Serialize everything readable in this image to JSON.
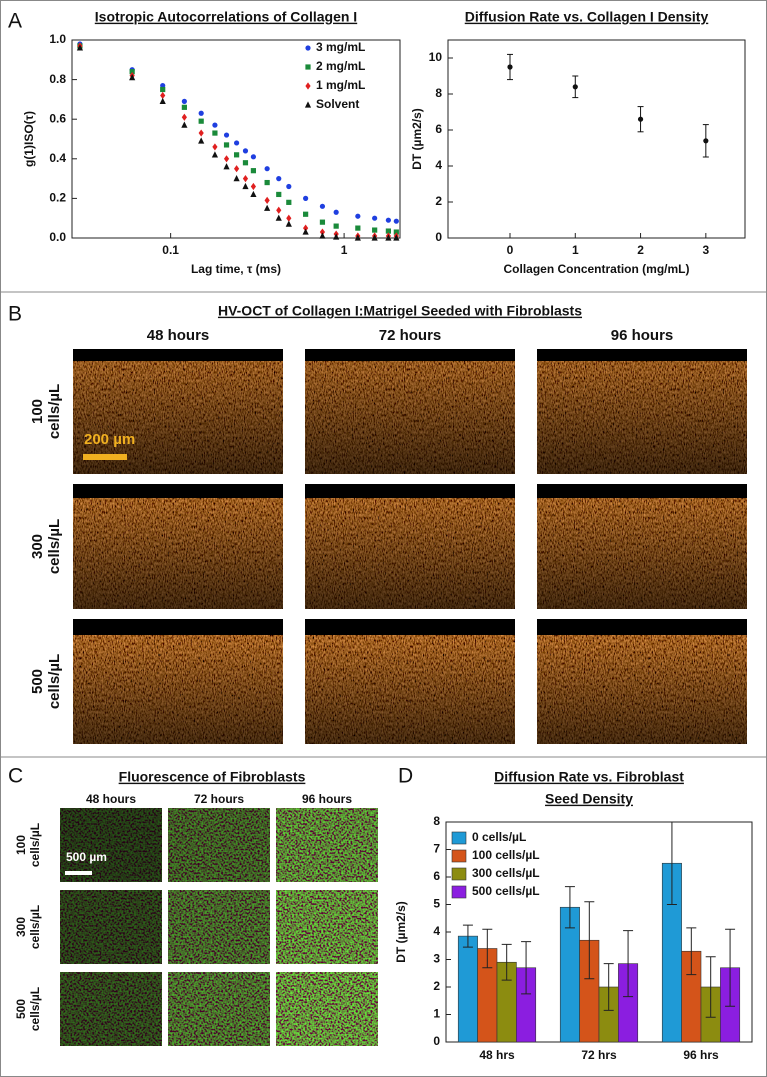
{
  "panels": [
    "A",
    "B",
    "C",
    "D"
  ],
  "chart_data": [
    {
      "type": "scatter",
      "title": "Isotropic Autocorrelations of Collagen I",
      "x_label": "Lag time, τ (ms)",
      "y_label": "g(1)ISO(τ)",
      "x_scale": "log",
      "xlim": [
        0.027,
        2.1
      ],
      "xticks": [
        0.1,
        1
      ],
      "ylim": [
        0,
        1
      ],
      "yticks": [
        {
          "value": 0,
          "label": "0.0"
        },
        0.2,
        0.4,
        0.6,
        0.8,
        {
          "value": 1,
          "label": "1.0"
        }
      ],
      "legend": "upper right",
      "x": [
        0.03,
        0.06,
        0.09,
        0.12,
        0.15,
        0.18,
        0.21,
        0.24,
        0.27,
        0.3,
        0.36,
        0.42,
        0.48,
        0.6,
        0.75,
        0.9,
        1.2,
        1.5,
        1.8,
        2.0
      ],
      "series": [
        {
          "name": "3 mg/mL",
          "color": "#1f3fe0",
          "marker": "circle",
          "values": [
            0.98,
            0.85,
            0.77,
            0.69,
            0.63,
            0.57,
            0.52,
            0.48,
            0.44,
            0.41,
            0.35,
            0.3,
            0.26,
            0.2,
            0.16,
            0.13,
            0.11,
            0.1,
            0.09,
            0.085
          ]
        },
        {
          "name": "2 mg/mL",
          "color": "#1a8a3a",
          "marker": "square",
          "values": [
            0.97,
            0.84,
            0.75,
            0.66,
            0.59,
            0.53,
            0.47,
            0.42,
            0.38,
            0.34,
            0.28,
            0.22,
            0.18,
            0.12,
            0.08,
            0.06,
            0.05,
            0.04,
            0.035,
            0.03
          ]
        },
        {
          "name": "1 mg/mL",
          "color": "#e02020",
          "marker": "diamond",
          "values": [
            0.97,
            0.82,
            0.72,
            0.61,
            0.53,
            0.46,
            0.4,
            0.35,
            0.3,
            0.26,
            0.19,
            0.14,
            0.1,
            0.05,
            0.03,
            0.02,
            0.01,
            0.01,
            0.01,
            0.01
          ]
        },
        {
          "name": "Solvent",
          "color": "#111111",
          "marker": "triangle",
          "values": [
            0.96,
            0.81,
            0.69,
            0.57,
            0.49,
            0.42,
            0.36,
            0.3,
            0.26,
            0.22,
            0.15,
            0.1,
            0.07,
            0.03,
            0.01,
            0.005,
            0,
            0,
            0,
            0
          ]
        }
      ]
    },
    {
      "type": "scatter",
      "title": "Diffusion Rate vs. Collagen I Density",
      "x_label": "Collagen Concentration (mg/mL)",
      "y_label": "DT (µm2/s)",
      "x_scale": "linear",
      "xlim": [
        -0.95,
        3.6
      ],
      "xticks": [
        0,
        1,
        2,
        3
      ],
      "ylim": [
        0,
        11
      ],
      "yticks": [
        0,
        2,
        4,
        6,
        8,
        10
      ],
      "x": [
        0,
        1,
        2,
        3
      ],
      "series": [
        {
          "color": "#111111",
          "marker": "circle",
          "values": [
            9.5,
            8.4,
            6.6,
            5.4
          ],
          "errors": [
            0.7,
            0.6,
            0.7,
            0.9
          ]
        }
      ]
    },
    {
      "type": "bar",
      "title": [
        "Diffusion Rate vs. Fibroblast",
        "Seed Density"
      ],
      "y_label": "DT (µm2/s)",
      "legend": "upper left",
      "ylim": [
        0,
        8
      ],
      "yticks": [
        0,
        1,
        2,
        3,
        4,
        5,
        6,
        7,
        8
      ],
      "categories": [
        "48 hrs",
        "72 hrs",
        "96 hrs"
      ],
      "series": [
        {
          "name": "0 cells/µL",
          "color": "#1f9ad6",
          "values": [
            3.85,
            4.9,
            6.5
          ],
          "errors": [
            0.4,
            0.75,
            1.5
          ]
        },
        {
          "name": "100 cells/µL",
          "color": "#d4541a",
          "values": [
            3.4,
            3.7,
            3.3
          ],
          "errors": [
            0.7,
            1.4,
            0.85
          ]
        },
        {
          "name": "300 cells/µL",
          "color": "#8c8c10",
          "values": [
            2.9,
            2.0,
            2.0
          ],
          "errors": [
            0.65,
            0.85,
            1.1
          ]
        },
        {
          "name": "500 cells/µL",
          "color": "#8b1ee0",
          "values": [
            2.7,
            2.85,
            2.7
          ],
          "errors": [
            0.95,
            1.2,
            1.4
          ]
        }
      ]
    }
  ],
  "oct": {
    "title": "HV-OCT of Collagen I:Matrigel Seeded with Fibroblasts",
    "columns": [
      "48 hours",
      "72 hours",
      "96 hours"
    ],
    "rows": [
      {
        "count": "100",
        "unit": "cells/µL"
      },
      {
        "count": "300",
        "unit": "cells/µL"
      },
      {
        "count": "500",
        "unit": "cells/µL"
      }
    ],
    "scale_bar": "200 µm"
  },
  "fluorescence": {
    "title": "Fluorescence of Fibroblasts",
    "columns": [
      "48 hours",
      "72 hours",
      "96 hours"
    ],
    "rows": [
      {
        "count": "100",
        "unit": "cells/µL"
      },
      {
        "count": "300",
        "unit": "cells/µL"
      },
      {
        "count": "500",
        "unit": "cells/µL"
      }
    ],
    "scale_bar": "500 µm"
  }
}
